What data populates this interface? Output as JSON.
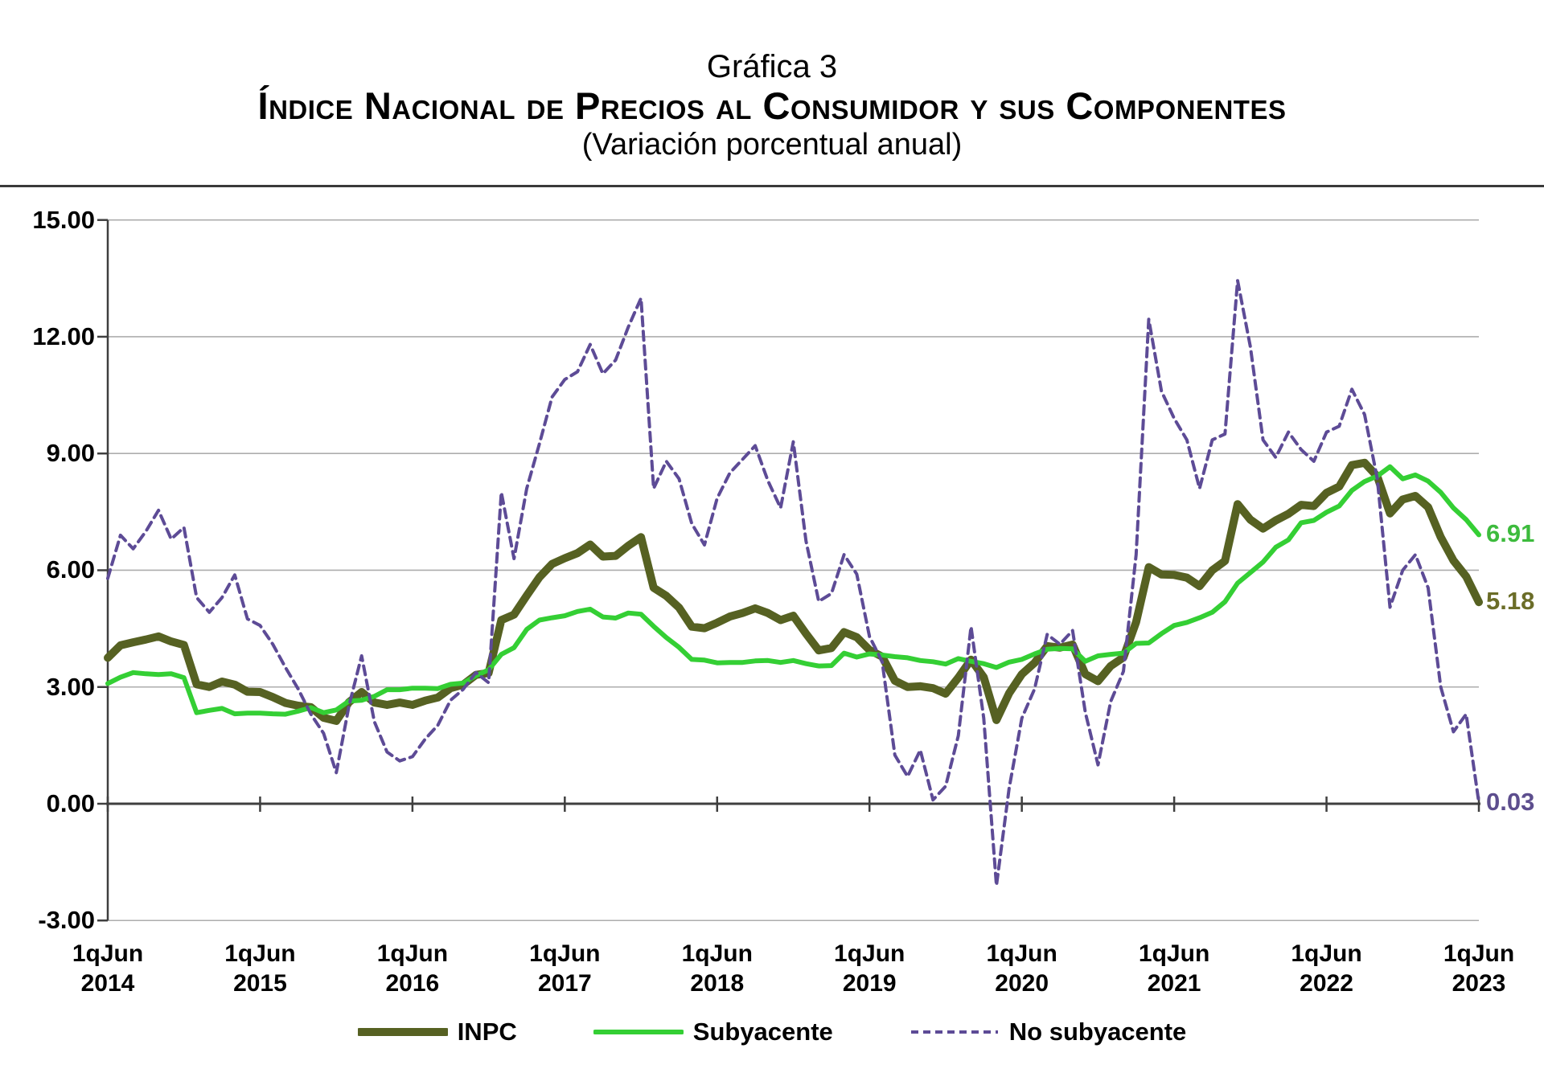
{
  "title": {
    "label": "Gráfica 3",
    "main": "Índice Nacional de Precios al Consumidor y sus Componentes",
    "subtitle": "(Variación porcentual anual)"
  },
  "chart_data": {
    "type": "line",
    "title": "Índice Nacional de Precios al Consumidor y sus componentes",
    "subtitle": "(Variación porcentual anual)",
    "xlabel": "",
    "ylabel": "",
    "ylim": [
      -3,
      15
    ],
    "grid": true,
    "legend_position": "bottom",
    "x_tick_labels": [
      {
        "line1": "1qJun",
        "line2": "2014"
      },
      {
        "line1": "1qJun",
        "line2": "2015"
      },
      {
        "line1": "1qJun",
        "line2": "2016"
      },
      {
        "line1": "1qJun",
        "line2": "2017"
      },
      {
        "line1": "1qJun",
        "line2": "2018"
      },
      {
        "line1": "1qJun",
        "line2": "2019"
      },
      {
        "line1": "1qJun",
        "line2": "2020"
      },
      {
        "line1": "1qJun",
        "line2": "2021"
      },
      {
        "line1": "1qJun",
        "line2": "2022"
      },
      {
        "line1": "1qJun",
        "line2": "2023"
      }
    ],
    "y_ticks": [
      {
        "label": "15.00",
        "value": 15
      },
      {
        "label": "12.00",
        "value": 12
      },
      {
        "label": "9.00",
        "value": 9
      },
      {
        "label": "6.00",
        "value": 6
      },
      {
        "label": "3.00",
        "value": 3
      },
      {
        "label": "0.00",
        "value": 0
      },
      {
        "label": "-3.00",
        "value": -3
      }
    ],
    "x_start_label": "1qJun 2014",
    "x_end_label": "1qJun 2023",
    "points_per_year": 12,
    "series": [
      {
        "name": "INPC",
        "color": "#566122",
        "label_color": "#6b6d28",
        "style": "solid",
        "stroke_width": 10,
        "values": [
          3.75,
          4.07,
          4.15,
          4.22,
          4.3,
          4.17,
          4.08,
          3.07,
          3.0,
          3.14,
          3.06,
          2.88,
          2.87,
          2.74,
          2.59,
          2.52,
          2.48,
          2.21,
          2.13,
          2.61,
          2.87,
          2.6,
          2.54,
          2.6,
          2.54,
          2.65,
          2.73,
          2.97,
          3.06,
          3.31,
          3.36,
          4.72,
          4.86,
          5.35,
          5.82,
          6.16,
          6.31,
          6.44,
          6.66,
          6.35,
          6.37,
          6.63,
          6.85,
          5.55,
          5.34,
          5.04,
          4.55,
          4.51,
          4.65,
          4.81,
          4.9,
          5.02,
          4.9,
          4.72,
          4.83,
          4.37,
          3.94,
          4.0,
          4.41,
          4.28,
          3.95,
          3.78,
          3.16,
          3.0,
          3.02,
          2.97,
          2.83,
          3.24,
          3.7,
          3.25,
          2.15,
          2.84,
          3.33,
          3.62,
          4.05,
          4.01,
          4.09,
          3.33,
          3.15,
          3.54,
          3.76,
          4.67,
          6.08,
          5.89,
          5.88,
          5.81,
          5.59,
          6.0,
          6.24,
          7.7,
          7.3,
          7.07,
          7.28,
          7.45,
          7.68,
          7.65,
          7.99,
          8.15,
          8.7,
          8.76,
          8.41,
          7.46,
          7.82,
          7.91,
          7.62,
          6.85,
          6.25,
          5.84,
          5.18
        ]
      },
      {
        "name": "Subyacente",
        "color": "#34cf34",
        "label_color": "#3dbb3d",
        "style": "solid",
        "stroke_width": 6,
        "values": [
          3.09,
          3.25,
          3.37,
          3.34,
          3.32,
          3.34,
          3.24,
          2.34,
          2.4,
          2.45,
          2.31,
          2.33,
          2.33,
          2.31,
          2.3,
          2.38,
          2.47,
          2.34,
          2.41,
          2.64,
          2.66,
          2.76,
          2.93,
          2.93,
          2.97,
          2.97,
          2.96,
          3.07,
          3.1,
          3.29,
          3.44,
          3.84,
          4.01,
          4.48,
          4.72,
          4.78,
          4.83,
          4.94,
          5.0,
          4.8,
          4.77,
          4.9,
          4.87,
          4.56,
          4.27,
          4.02,
          3.71,
          3.69,
          3.62,
          3.63,
          3.63,
          3.67,
          3.68,
          3.63,
          3.68,
          3.6,
          3.54,
          3.55,
          3.87,
          3.77,
          3.85,
          3.82,
          3.78,
          3.75,
          3.68,
          3.65,
          3.59,
          3.73,
          3.66,
          3.6,
          3.5,
          3.64,
          3.71,
          3.85,
          3.97,
          3.99,
          3.98,
          3.66,
          3.8,
          3.84,
          3.87,
          4.12,
          4.13,
          4.37,
          4.58,
          4.66,
          4.78,
          4.92,
          5.19,
          5.67,
          5.94,
          6.21,
          6.59,
          6.78,
          7.22,
          7.28,
          7.49,
          7.65,
          8.05,
          8.28,
          8.42,
          8.66,
          8.35,
          8.45,
          8.29,
          8.0,
          7.6,
          7.3,
          6.91
        ]
      },
      {
        "name": "No subyacente",
        "color": "#5d4b96",
        "label_color": "#5d4e8e",
        "style": "dashed",
        "stroke_width": 4,
        "dash": "11 7",
        "values": [
          5.79,
          6.9,
          6.55,
          7.0,
          7.54,
          6.8,
          7.1,
          5.3,
          4.92,
          5.3,
          5.88,
          4.75,
          4.58,
          4.1,
          3.5,
          2.95,
          2.3,
          1.81,
          0.8,
          2.52,
          3.8,
          2.11,
          1.33,
          1.1,
          1.21,
          1.66,
          2.02,
          2.66,
          2.94,
          3.37,
          3.11,
          8.0,
          6.3,
          8.1,
          9.25,
          10.45,
          10.9,
          11.1,
          11.8,
          11.05,
          11.4,
          12.25,
          12.99,
          8.1,
          8.8,
          8.35,
          7.2,
          6.65,
          7.85,
          8.5,
          8.85,
          9.2,
          8.3,
          7.6,
          9.3,
          6.75,
          5.2,
          5.4,
          6.4,
          5.9,
          4.3,
          3.65,
          1.25,
          0.7,
          1.38,
          0.1,
          0.45,
          1.75,
          4.55,
          2.2,
          -2.1,
          0.4,
          2.2,
          2.95,
          4.35,
          4.1,
          4.45,
          2.35,
          1.0,
          2.63,
          3.4,
          6.4,
          12.45,
          10.6,
          9.9,
          9.35,
          8.1,
          9.35,
          9.5,
          13.44,
          11.75,
          9.35,
          8.9,
          9.55,
          9.1,
          8.8,
          9.55,
          9.7,
          10.65,
          10.0,
          8.35,
          5.05,
          6.0,
          6.4,
          5.55,
          3.0,
          1.85,
          2.3,
          0.03
        ]
      }
    ],
    "end_labels": [
      {
        "text": "6.91",
        "value": 6.91,
        "series": "Subyacente"
      },
      {
        "text": "5.18",
        "value": 5.18,
        "series": "INPC"
      },
      {
        "text": "0.03",
        "value": 0.03,
        "series": "No subyacente"
      }
    ],
    "legend": [
      "INPC",
      "Subyacente",
      "No subyacente"
    ]
  },
  "style": {
    "grid_color": "#adadad",
    "axis_color": "#3f3f3f"
  }
}
